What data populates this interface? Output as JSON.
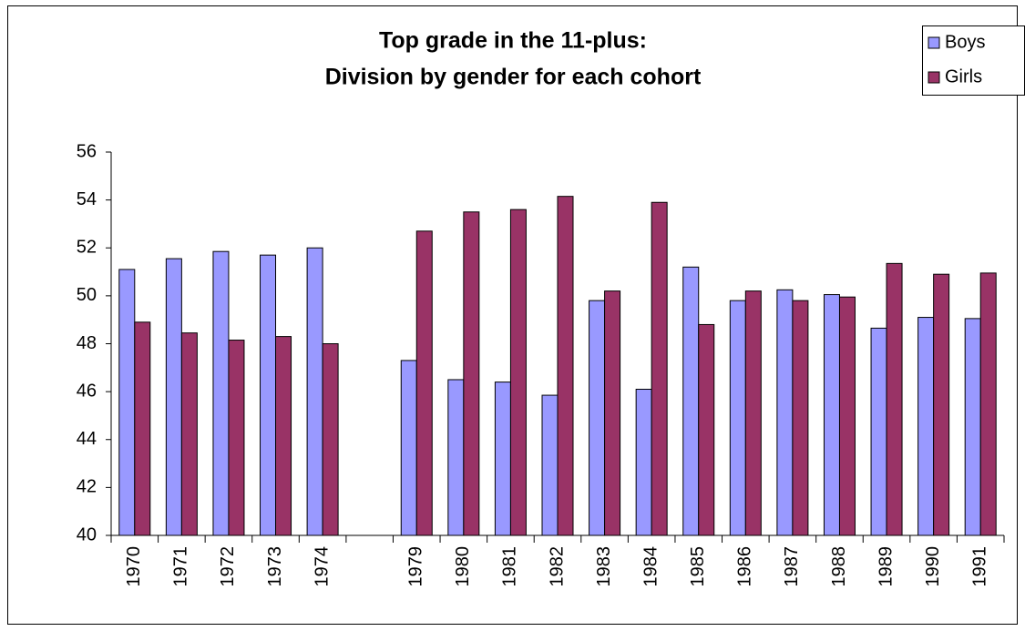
{
  "chart_data": {
    "type": "bar",
    "title": [
      "Top grade in the 11-plus:",
      "Division by gender for each cohort"
    ],
    "categories": [
      "1970",
      "1971",
      "1972",
      "1973",
      "1974",
      null,
      "1979",
      "1980",
      "1981",
      "1982",
      "1983",
      "1984",
      "1985",
      "1986",
      "1987",
      "1988",
      "1989",
      "1990",
      "1991"
    ],
    "series": [
      {
        "name": "Boys",
        "color": "#9999ff",
        "values": [
          51.1,
          51.55,
          51.85,
          51.7,
          52.0,
          null,
          47.3,
          46.5,
          46.4,
          45.85,
          49.8,
          46.1,
          51.2,
          49.8,
          50.25,
          50.05,
          48.65,
          49.1,
          49.05
        ]
      },
      {
        "name": "Girls",
        "color": "#993366",
        "values": [
          48.9,
          48.45,
          48.15,
          48.3,
          48.0,
          null,
          52.7,
          53.5,
          53.6,
          54.15,
          50.2,
          53.9,
          48.8,
          50.2,
          49.8,
          49.95,
          51.35,
          50.9,
          50.95
        ]
      }
    ],
    "ylim": [
      40,
      56
    ],
    "yticks": [
      40,
      42,
      44,
      46,
      48,
      50,
      52,
      54,
      56
    ],
    "grid": false,
    "legend": "top-right"
  }
}
